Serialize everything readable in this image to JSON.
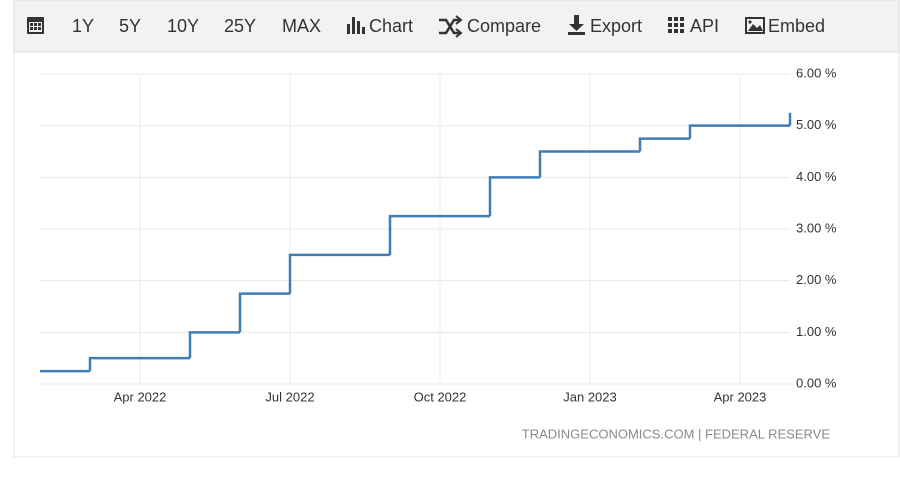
{
  "toolbar": [
    "1Y",
    "5Y",
    "10Y",
    "25Y",
    "MAX",
    "Chart",
    "Compare",
    "Export",
    "API",
    "Embed"
  ],
  "chart_data": {
    "type": "step",
    "x": [
      "2022-02",
      "2022-03",
      "2022-05",
      "2022-06",
      "2022-07",
      "2022-09",
      "2022-11",
      "2022-12",
      "2023-02",
      "2023-03",
      "2023-05"
    ],
    "values": [
      0.25,
      0.5,
      1.0,
      1.75,
      2.5,
      3.25,
      4.0,
      4.5,
      4.75,
      5.0,
      5.25
    ],
    "color": "#3f7db5",
    "xlim": [
      "2022-02",
      "2023-05"
    ],
    "xticks": [
      {
        "value": "2022-04",
        "label": "Apr 2022"
      },
      {
        "value": "2022-07",
        "label": "Jul 2022"
      },
      {
        "value": "2022-10",
        "label": "Oct 2022"
      },
      {
        "value": "2023-01",
        "label": "Jan 2023"
      },
      {
        "value": "2023-04",
        "label": "Apr 2023"
      }
    ],
    "ylim": [
      0,
      6
    ],
    "yticks": [
      {
        "value": 0,
        "label": "0.00 %"
      },
      {
        "value": 1,
        "label": "1.00 %"
      },
      {
        "value": 2,
        "label": "2.00 %"
      },
      {
        "value": 3,
        "label": "3.00 %"
      },
      {
        "value": 4,
        "label": "4.00 %"
      },
      {
        "value": 5,
        "label": "5.00 %"
      },
      {
        "value": 6,
        "label": "6.00 %"
      }
    ],
    "grid": true,
    "source": "TRADINGECONOMICS.COM | FEDERAL RESERVE"
  }
}
